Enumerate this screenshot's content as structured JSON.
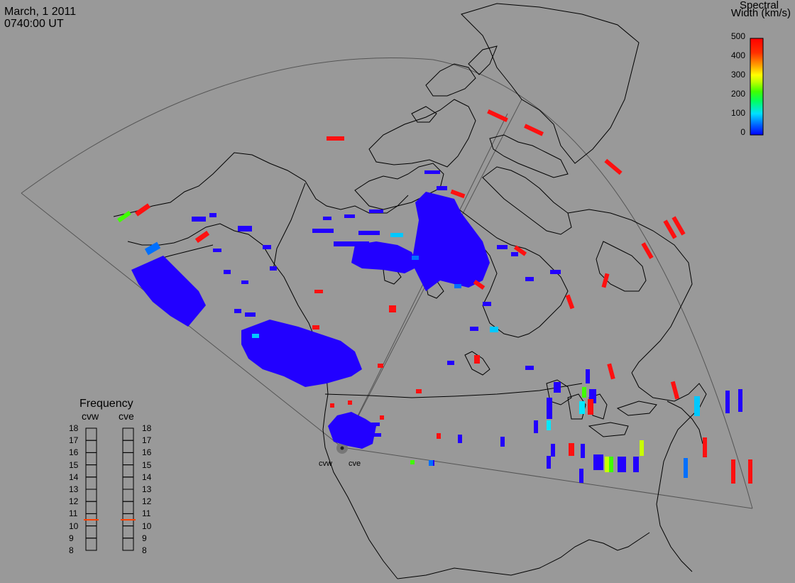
{
  "header": {
    "date": "March, 1 2011",
    "time": "0740:00 UT"
  },
  "colorbar": {
    "title_line1": "Spectral",
    "title_line2": "Width (km/s)",
    "ticks": [
      "500",
      "400",
      "300",
      "200",
      "100",
      "0"
    ],
    "min": 0,
    "max": 500,
    "colors": [
      "#0000ff",
      "#0080ff",
      "#00e0ff",
      "#00ff80",
      "#40ff00",
      "#c0ff00",
      "#ffff00",
      "#ffa000",
      "#ff4000",
      "#ff0000"
    ]
  },
  "frequency_panel": {
    "title": "Frequency",
    "radars": [
      "cvw",
      "cve"
    ],
    "scale": [
      "18",
      "17",
      "16",
      "15",
      "14",
      "13",
      "12",
      "11",
      "10",
      "9",
      "8"
    ],
    "cvw_frequency_mhz": 10.5,
    "cve_frequency_mhz": 10.5,
    "marker_color": "#ff4000"
  },
  "sites": {
    "west_label": "cvw",
    "east_label": "cve"
  },
  "colors": {
    "background": "#999999",
    "land_outline": "#000000",
    "fov_outline": "#555555"
  }
}
